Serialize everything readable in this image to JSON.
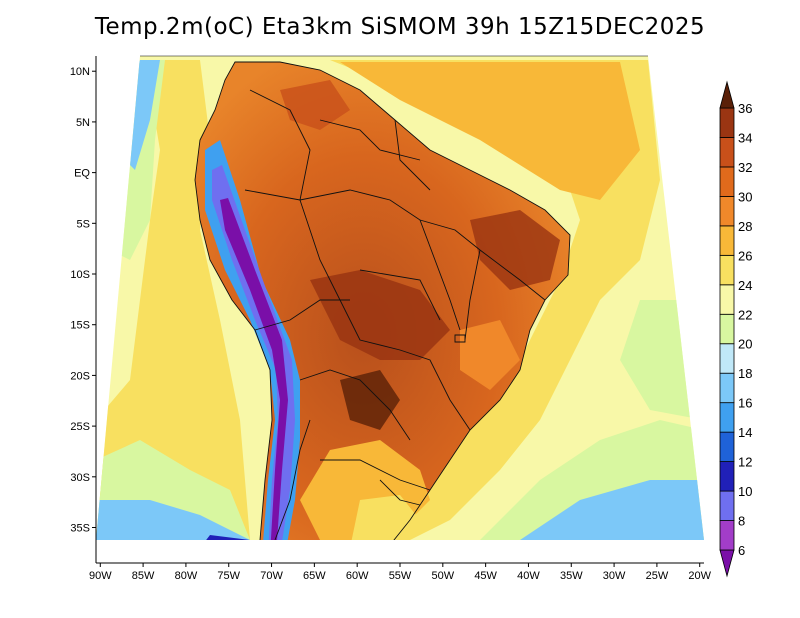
{
  "title": "Temp.2m(oC) Eta3km SiSMOM 39h 15Z15DEC2025",
  "map": {
    "latitude_labels": [
      "10N",
      "5N",
      "EQ",
      "5S",
      "10S",
      "15S",
      "20S",
      "25S",
      "30S",
      "35S"
    ],
    "latitude_values": [
      10,
      5,
      0,
      -5,
      -10,
      -15,
      -20,
      -25,
      -30,
      -35
    ],
    "longitude_labels": [
      "90W",
      "85W",
      "80W",
      "75W",
      "70W",
      "65W",
      "60W",
      "55W",
      "50W",
      "45W",
      "40W",
      "35W",
      "30W",
      "25W",
      "20W"
    ],
    "longitude_values": [
      -90,
      -85,
      -80,
      -75,
      -70,
      -65,
      -60,
      -55,
      -50,
      -45,
      -40,
      -35,
      -30,
      -25,
      -20
    ],
    "lon_range": [
      -90.5,
      -19.5
    ],
    "lat_range": [
      -38.5,
      11.5
    ]
  },
  "colorbar": {
    "labels": [
      "6",
      "8",
      "10",
      "12",
      "14",
      "16",
      "18",
      "20",
      "22",
      "24",
      "26",
      "28",
      "30",
      "32",
      "34",
      "36"
    ],
    "values": [
      6,
      8,
      10,
      12,
      14,
      16,
      18,
      20,
      22,
      24,
      26,
      28,
      30,
      32,
      34,
      36
    ],
    "colors": [
      "#7a0fa8",
      "#a23dc8",
      "#6f6ff0",
      "#2020b8",
      "#1f62d8",
      "#3fa0f0",
      "#7cc8f8",
      "#c0e8f8",
      "#d8f7a0",
      "#f8f8a8",
      "#f8e060",
      "#f8b838",
      "#f0882a",
      "#e06a1c",
      "#c8501a",
      "#9a3512",
      "#5a2008"
    ]
  }
}
